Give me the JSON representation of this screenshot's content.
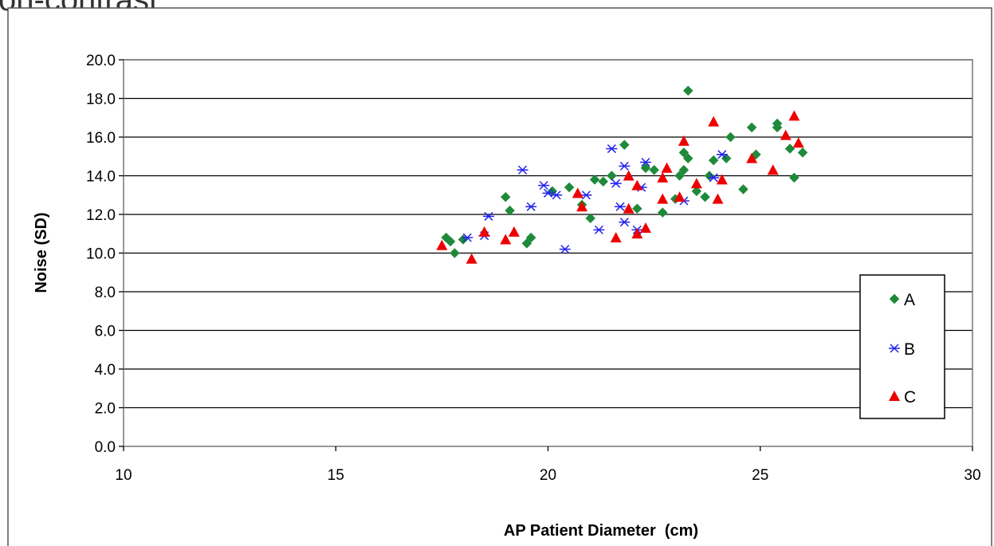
{
  "page_title_fragment": "on-contrast",
  "chart_data": {
    "type": "scatter",
    "xlabel": "AP Patient Diameter  (cm)",
    "ylabel": "Noise (SD)",
    "xlim": [
      10,
      30
    ],
    "ylim": [
      0,
      20
    ],
    "x_ticks": [
      "10",
      "15",
      "20",
      "25",
      "30"
    ],
    "y_ticks": [
      "0.0",
      "2.0",
      "4.0",
      "6.0",
      "8.0",
      "10.0",
      "12.0",
      "14.0",
      "16.0",
      "18.0",
      "20.0"
    ],
    "grid": "horizontal",
    "legend_position": "right",
    "series": [
      {
        "name": "A",
        "marker": "diamond",
        "color": "#1e8a3a",
        "points": [
          [
            17.6,
            10.8
          ],
          [
            17.7,
            10.6
          ],
          [
            17.8,
            10.0
          ],
          [
            18.0,
            10.7
          ],
          [
            19.0,
            12.9
          ],
          [
            19.1,
            12.2
          ],
          [
            19.5,
            10.5
          ],
          [
            19.6,
            10.8
          ],
          [
            20.1,
            13.2
          ],
          [
            20.5,
            13.4
          ],
          [
            20.8,
            12.5
          ],
          [
            21.0,
            11.8
          ],
          [
            21.1,
            13.8
          ],
          [
            21.3,
            13.7
          ],
          [
            21.5,
            14.0
          ],
          [
            21.8,
            15.6
          ],
          [
            22.1,
            12.3
          ],
          [
            22.3,
            14.4
          ],
          [
            22.5,
            14.3
          ],
          [
            22.7,
            12.1
          ],
          [
            23.0,
            12.8
          ],
          [
            23.1,
            14.0
          ],
          [
            23.2,
            14.3
          ],
          [
            23.2,
            15.2
          ],
          [
            23.3,
            18.4
          ],
          [
            23.3,
            14.9
          ],
          [
            23.5,
            13.2
          ],
          [
            23.7,
            12.9
          ],
          [
            23.8,
            14.0
          ],
          [
            23.9,
            14.8
          ],
          [
            24.2,
            14.9
          ],
          [
            24.3,
            16.0
          ],
          [
            24.6,
            13.3
          ],
          [
            24.8,
            16.5
          ],
          [
            24.9,
            15.1
          ],
          [
            25.4,
            16.7
          ],
          [
            25.4,
            16.5
          ],
          [
            25.7,
            15.4
          ],
          [
            25.8,
            13.9
          ],
          [
            26.0,
            15.2
          ]
        ]
      },
      {
        "name": "B",
        "marker": "asterisk",
        "color": "#2222ee",
        "points": [
          [
            18.1,
            10.8
          ],
          [
            18.5,
            10.9
          ],
          [
            18.6,
            11.9
          ],
          [
            19.4,
            14.3
          ],
          [
            19.6,
            12.4
          ],
          [
            19.9,
            13.5
          ],
          [
            20.0,
            13.1
          ],
          [
            20.2,
            13.0
          ],
          [
            20.4,
            10.2
          ],
          [
            20.9,
            13.0
          ],
          [
            21.2,
            11.2
          ],
          [
            21.5,
            15.4
          ],
          [
            21.6,
            13.6
          ],
          [
            21.7,
            12.4
          ],
          [
            21.8,
            14.5
          ],
          [
            21.8,
            11.6
          ],
          [
            22.1,
            11.2
          ],
          [
            22.2,
            13.4
          ],
          [
            22.3,
            14.7
          ],
          [
            23.2,
            12.7
          ],
          [
            23.9,
            13.9
          ],
          [
            24.1,
            15.1
          ]
        ]
      },
      {
        "name": "C",
        "marker": "triangle",
        "color": "#ee0000",
        "points": [
          [
            17.5,
            10.4
          ],
          [
            18.2,
            9.7
          ],
          [
            18.5,
            11.1
          ],
          [
            19.0,
            10.7
          ],
          [
            19.2,
            11.1
          ],
          [
            20.7,
            13.1
          ],
          [
            20.8,
            12.4
          ],
          [
            21.6,
            10.8
          ],
          [
            21.9,
            14.0
          ],
          [
            21.9,
            12.3
          ],
          [
            22.1,
            13.5
          ],
          [
            22.1,
            11.0
          ],
          [
            22.3,
            11.3
          ],
          [
            22.7,
            12.8
          ],
          [
            22.7,
            13.9
          ],
          [
            22.8,
            14.4
          ],
          [
            23.1,
            12.9
          ],
          [
            23.2,
            15.8
          ],
          [
            23.5,
            13.6
          ],
          [
            23.9,
            16.8
          ],
          [
            24.0,
            12.8
          ],
          [
            24.1,
            13.8
          ],
          [
            24.8,
            14.9
          ],
          [
            25.3,
            14.3
          ],
          [
            25.6,
            16.1
          ],
          [
            25.8,
            17.1
          ],
          [
            25.9,
            15.7
          ]
        ]
      }
    ]
  }
}
